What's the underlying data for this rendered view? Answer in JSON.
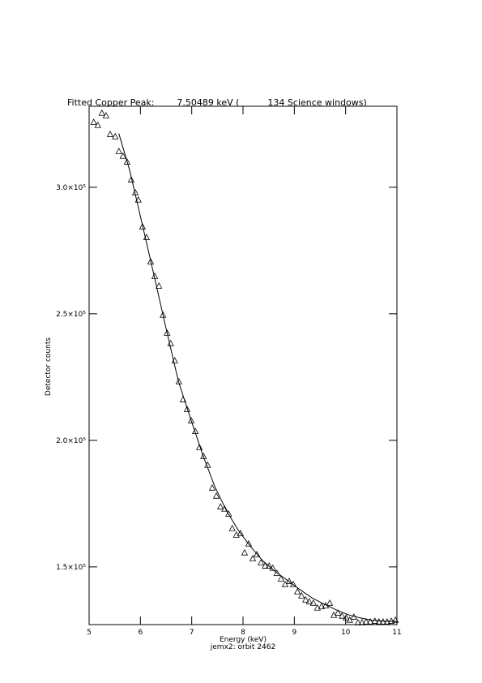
{
  "chart_data": {
    "type": "scatter",
    "title": "Fitted Copper Peak:        7.50489 keV (          134 Science windows)",
    "x_label": "Energy (keV)",
    "subtitle": "jemx2: orbit 2462",
    "y_label": "Detector counts",
    "xlim": [
      5,
      11
    ],
    "xticks": [
      5,
      6,
      7,
      8,
      9,
      10,
      11
    ],
    "ylim": [
      127200,
      332000
    ],
    "yticks": [
      {
        "value": 150000,
        "label": "1.5×10⁵"
      },
      {
        "value": 200000,
        "label": "2.0×10⁵"
      },
      {
        "value": 250000,
        "label": "2.5×10⁵"
      },
      {
        "value": 300000,
        "label": "3.0×10⁵"
      }
    ],
    "series": [
      {
        "marker": "triangle",
        "color": "#000000",
        "x": [
          5.09,
          5.17,
          5.25,
          5.33,
          5.41,
          5.51,
          5.58,
          5.66,
          5.74,
          5.82,
          5.9,
          5.96,
          6.04,
          6.12,
          6.2,
          6.28,
          6.36,
          6.44,
          6.52,
          6.59,
          6.67,
          6.75,
          6.83,
          6.91,
          6.99,
          7.07,
          7.15,
          7.23,
          7.31,
          7.4,
          7.48,
          7.56,
          7.64,
          7.72,
          7.79,
          7.87,
          7.95,
          8.03,
          8.11,
          8.19,
          8.27,
          8.35,
          8.43,
          8.51,
          8.58,
          8.66,
          8.74,
          8.82,
          8.9,
          8.98,
          9.06,
          9.14,
          9.22,
          9.29,
          9.37,
          9.45,
          9.53,
          9.61,
          9.69,
          9.77,
          9.85,
          9.93,
          10.01,
          10.08,
          10.16,
          10.24,
          10.32,
          10.4,
          10.48,
          10.57,
          10.65,
          10.73,
          10.81,
          10.89,
          10.97
        ],
        "values": [
          325600,
          324400,
          329200,
          328200,
          320800,
          319900,
          314100,
          312200,
          309900,
          302900,
          297800,
          294900,
          284300,
          280100,
          270500,
          264700,
          260900,
          249400,
          242300,
          238200,
          231400,
          223100,
          216000,
          212200,
          207700,
          203500,
          197100,
          193600,
          190100,
          181100,
          177900,
          173700,
          172800,
          170800,
          165100,
          162500,
          163100,
          155500,
          159000,
          153200,
          154800,
          151600,
          150300,
          150300,
          149400,
          147400,
          145200,
          143000,
          144200,
          143000,
          140100,
          138500,
          136900,
          136200,
          135600,
          133700,
          134300,
          134600,
          135600,
          130800,
          131700,
          130500,
          129800,
          128900,
          130100,
          127900,
          127900,
          128200,
          128200,
          128500,
          128200,
          128200,
          128200,
          128500,
          128900
        ]
      },
      {
        "marker": "none",
        "color": "#000000",
        "x": [
          5.58,
          5.79,
          6.03,
          6.26,
          6.5,
          6.74,
          6.97,
          7.21,
          7.45,
          7.68,
          7.92,
          8.16,
          8.39,
          8.63,
          8.87,
          9.11,
          9.34,
          9.58,
          9.82,
          10.05,
          10.29,
          10.53,
          10.76,
          11
        ],
        "values": [
          321200,
          306700,
          285900,
          265700,
          244200,
          223400,
          209000,
          194600,
          181700,
          172100,
          164100,
          157700,
          152300,
          148100,
          144600,
          141000,
          137800,
          135300,
          133000,
          131100,
          129800,
          128900,
          128500,
          128500
        ]
      }
    ]
  }
}
